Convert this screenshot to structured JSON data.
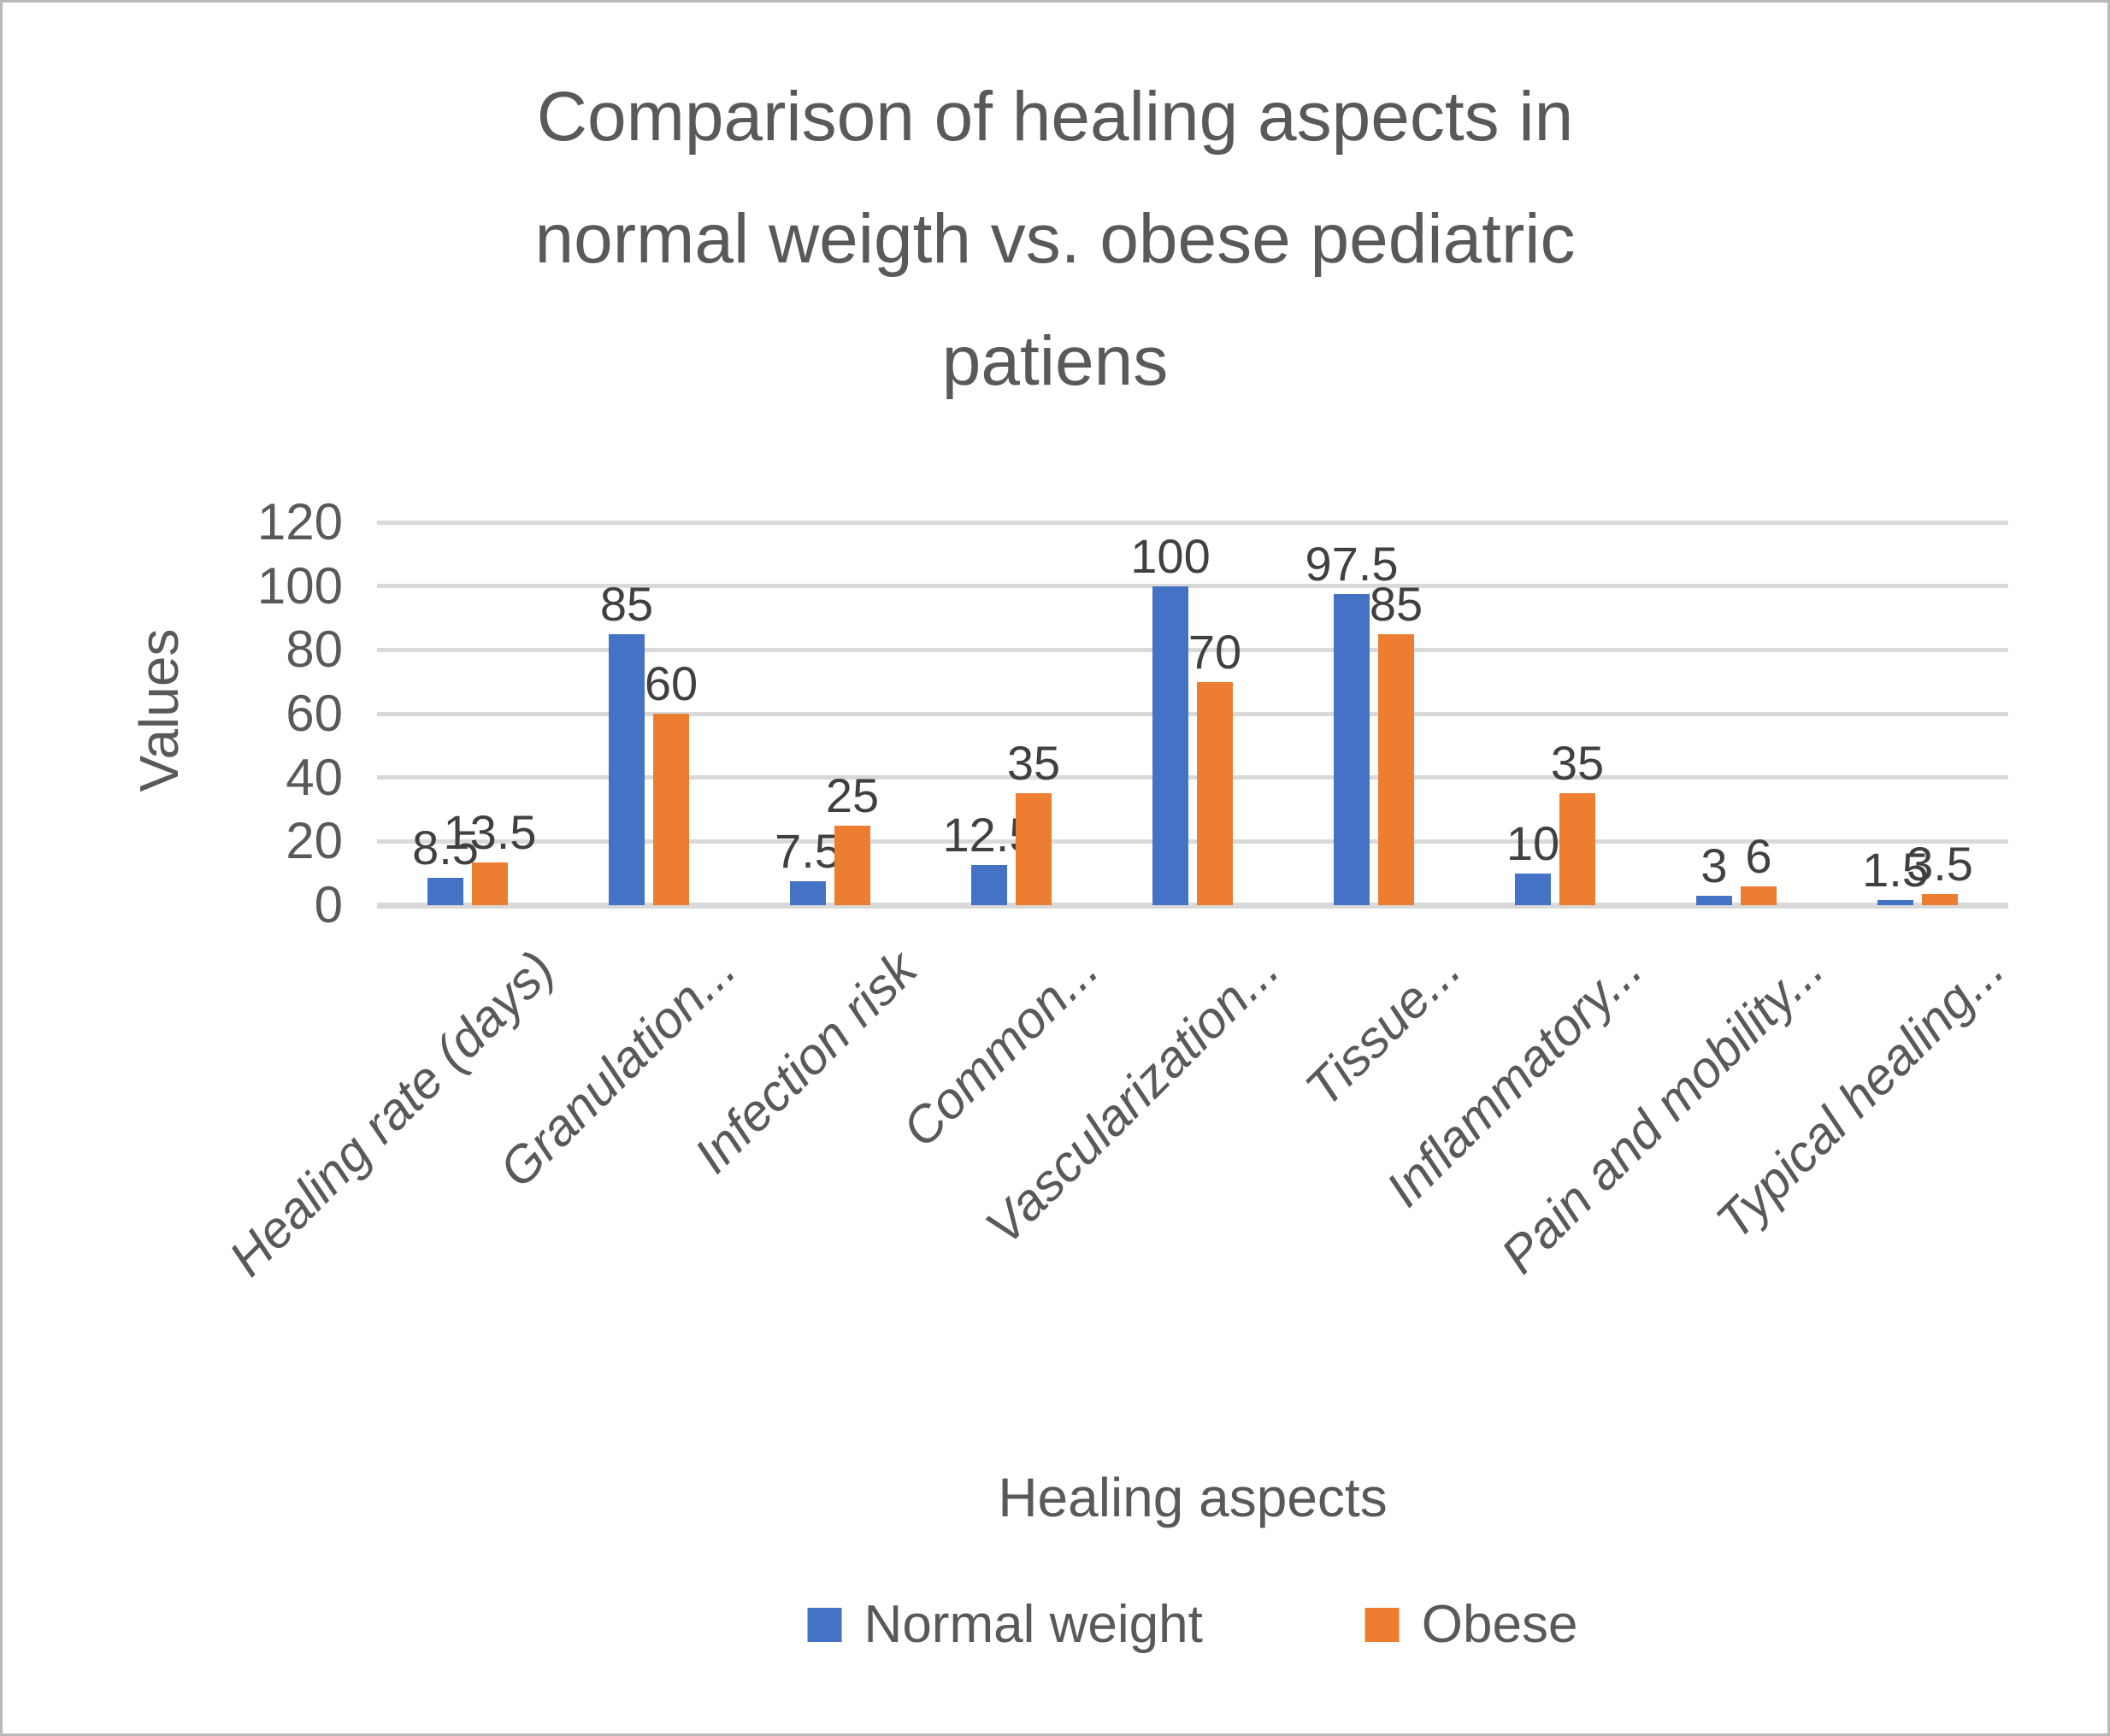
{
  "chart_data": {
    "type": "bar",
    "title": "Comparison of healing aspects in normal weigth vs. obese pediatric patiens",
    "title_lines": [
      "Comparison of healing aspects in",
      "normal weigth vs. obese pediatric",
      "patiens"
    ],
    "xlabel": "Healing aspects",
    "ylabel": "Values",
    "categories": [
      "Healing rate (days)",
      "Granulation...",
      "Infection risk",
      "Common...",
      "Vascularization...",
      "Tissue...",
      "Inflammatory...",
      "Pain and mobility...",
      "Typical healing..."
    ],
    "series": [
      {
        "name": "Normal weight",
        "color": "#4472C4",
        "values": [
          8.5,
          85,
          7.5,
          12.5,
          100,
          97.5,
          10,
          3,
          1.5
        ],
        "data_labels": [
          "8.5",
          "85",
          "7.5",
          "12.5",
          "100",
          "97.5",
          "10",
          "3",
          "1.5"
        ]
      },
      {
        "name": "Obese",
        "color": "#ED7D31",
        "values": [
          13.5,
          60,
          25,
          35,
          70,
          85,
          35,
          6,
          3.5
        ],
        "data_labels": [
          "13.5",
          "60",
          "25",
          "35",
          "70",
          "85",
          "35",
          "6",
          "3.5"
        ]
      }
    ],
    "ylim": [
      0,
      120
    ],
    "yticks": [
      0,
      20,
      40,
      60,
      80,
      100,
      120
    ],
    "grid": true,
    "legend_position": "bottom",
    "styles": {
      "gridline_color": "#d9d9d9",
      "axis_text_color": "#595959",
      "data_label_color": "#404040",
      "title_color": "#595959",
      "category_labels_italic_rotated_45deg": true
    }
  }
}
